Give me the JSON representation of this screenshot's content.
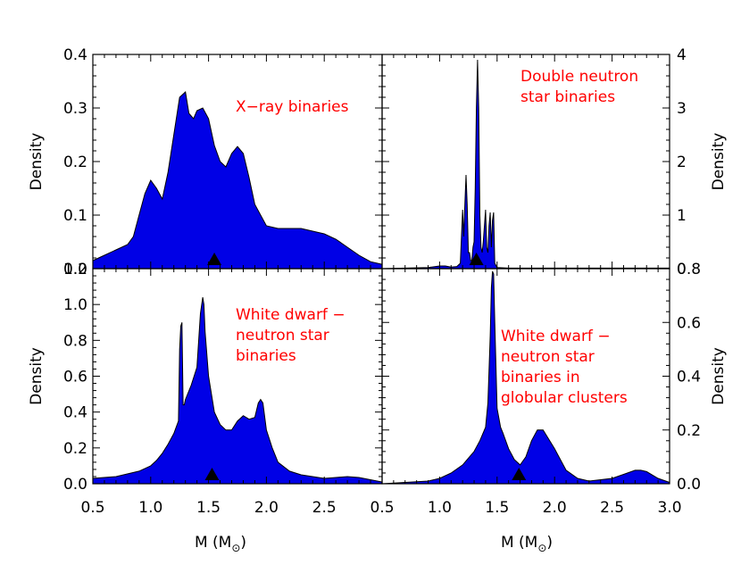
{
  "chart_data": [
    {
      "type": "area",
      "label_lines": [
        "X−ray binaries"
      ],
      "ylabel": "Density",
      "ylabel_side": "left",
      "xlim": [
        0.5,
        3.0
      ],
      "ylim": [
        0,
        0.4
      ],
      "yticks": [
        "0.0",
        "0.1",
        "0.2",
        "0.3",
        "0.4"
      ],
      "marker_x": 1.55,
      "fill_color": "#0000e6",
      "x": [
        0.5,
        0.6,
        0.7,
        0.8,
        0.85,
        0.9,
        0.95,
        1.0,
        1.05,
        1.1,
        1.15,
        1.2,
        1.25,
        1.3,
        1.33,
        1.37,
        1.4,
        1.45,
        1.5,
        1.55,
        1.6,
        1.65,
        1.7,
        1.75,
        1.8,
        1.85,
        1.9,
        2.0,
        2.1,
        2.2,
        2.3,
        2.4,
        2.5,
        2.6,
        2.7,
        2.8,
        2.9,
        3.0
      ],
      "y": [
        0.015,
        0.025,
        0.035,
        0.045,
        0.06,
        0.1,
        0.14,
        0.165,
        0.15,
        0.13,
        0.18,
        0.25,
        0.32,
        0.33,
        0.29,
        0.28,
        0.295,
        0.3,
        0.28,
        0.23,
        0.2,
        0.19,
        0.215,
        0.228,
        0.215,
        0.17,
        0.12,
        0.08,
        0.075,
        0.075,
        0.075,
        0.07,
        0.065,
        0.055,
        0.04,
        0.025,
        0.013,
        0.008
      ]
    },
    {
      "type": "area",
      "label_lines": [
        "Double neutron",
        "star binaries"
      ],
      "ylabel": "Density",
      "ylabel_side": "right",
      "xlim": [
        0.5,
        3.0
      ],
      "ylim": [
        0,
        4
      ],
      "yticks": [
        "0",
        "1",
        "2",
        "3",
        "4"
      ],
      "marker_x": 1.32,
      "fill_color": "#0000e6",
      "x": [
        0.5,
        0.9,
        1.0,
        1.05,
        1.1,
        1.15,
        1.18,
        1.19,
        1.2,
        1.21,
        1.22,
        1.23,
        1.24,
        1.25,
        1.26,
        1.27,
        1.28,
        1.29,
        1.3,
        1.31,
        1.32,
        1.33,
        1.34,
        1.35,
        1.36,
        1.37,
        1.38,
        1.39,
        1.4,
        1.41,
        1.42,
        1.43,
        1.44,
        1.45,
        1.46,
        1.47,
        1.48,
        1.5,
        1.6,
        2.0,
        3.0
      ],
      "y": [
        0.0,
        0.02,
        0.05,
        0.05,
        0.03,
        0.04,
        0.1,
        0.6,
        1.1,
        0.6,
        1.2,
        1.75,
        1.2,
        0.3,
        0.3,
        0.15,
        0.15,
        0.4,
        0.5,
        1.5,
        3.0,
        3.9,
        3.0,
        1.0,
        0.4,
        0.3,
        0.5,
        0.8,
        1.1,
        0.4,
        0.3,
        0.8,
        1.05,
        0.4,
        0.9,
        1.05,
        0.1,
        0.02,
        0.01,
        0.01,
        0.01
      ]
    },
    {
      "type": "area",
      "label_lines": [
        "White dwarf −",
        "neutron star",
        "binaries"
      ],
      "ylabel": "Density",
      "ylabel_side": "left",
      "xlim": [
        0.5,
        3.0
      ],
      "ylim": [
        0,
        1.2
      ],
      "yticks": [
        "0.0",
        "0.2",
        "0.4",
        "0.6",
        "0.8",
        "1.0",
        "1.2"
      ],
      "marker_x": 1.53,
      "fill_color": "#0000e6",
      "x": [
        0.5,
        0.7,
        0.9,
        1.0,
        1.05,
        1.1,
        1.15,
        1.2,
        1.24,
        1.25,
        1.26,
        1.27,
        1.28,
        1.29,
        1.3,
        1.35,
        1.4,
        1.43,
        1.45,
        1.46,
        1.47,
        1.5,
        1.55,
        1.6,
        1.65,
        1.7,
        1.75,
        1.8,
        1.85,
        1.9,
        1.93,
        1.95,
        1.97,
        2.0,
        2.05,
        2.1,
        2.2,
        2.3,
        2.5,
        2.6,
        2.7,
        2.8,
        3.0
      ],
      "y": [
        0.03,
        0.04,
        0.07,
        0.1,
        0.13,
        0.17,
        0.22,
        0.28,
        0.35,
        0.75,
        0.88,
        0.9,
        0.44,
        0.44,
        0.47,
        0.55,
        0.65,
        0.95,
        1.04,
        1.0,
        0.85,
        0.6,
        0.4,
        0.33,
        0.3,
        0.3,
        0.35,
        0.38,
        0.36,
        0.37,
        0.45,
        0.47,
        0.45,
        0.3,
        0.2,
        0.12,
        0.07,
        0.05,
        0.03,
        0.035,
        0.04,
        0.035,
        0.01
      ]
    },
    {
      "type": "area",
      "label_lines": [
        "White dwarf −",
        "neutron star",
        "binaries in",
        "globular clusters"
      ],
      "ylabel": "Density",
      "ylabel_side": "right",
      "xlim": [
        0.5,
        3.0
      ],
      "ylim": [
        0,
        0.8
      ],
      "yticks": [
        "0.0",
        "0.2",
        "0.4",
        "0.6",
        "0.8"
      ],
      "marker_x": 1.69,
      "fill_color": "#0000e6",
      "x": [
        0.5,
        0.7,
        0.9,
        1.0,
        1.1,
        1.2,
        1.3,
        1.35,
        1.4,
        1.42,
        1.44,
        1.45,
        1.46,
        1.47,
        1.48,
        1.5,
        1.53,
        1.55,
        1.6,
        1.65,
        1.7,
        1.75,
        1.8,
        1.85,
        1.9,
        2.0,
        2.1,
        2.2,
        2.3,
        2.5,
        2.6,
        2.7,
        2.75,
        2.8,
        2.9,
        3.0
      ],
      "y": [
        0.0,
        0.005,
        0.01,
        0.02,
        0.04,
        0.07,
        0.12,
        0.16,
        0.21,
        0.3,
        0.55,
        0.73,
        0.79,
        0.78,
        0.6,
        0.28,
        0.21,
        0.19,
        0.13,
        0.09,
        0.07,
        0.1,
        0.16,
        0.2,
        0.2,
        0.13,
        0.05,
        0.02,
        0.01,
        0.02,
        0.035,
        0.05,
        0.05,
        0.045,
        0.02,
        0.005
      ]
    }
  ],
  "xticks_left": [
    "0.5",
    "1.0",
    "1.5",
    "2.0",
    "2.5"
  ],
  "xticks_right": [
    "0.5",
    "1.0",
    "1.5",
    "2.0",
    "2.5",
    "3.0"
  ],
  "xlabel": "M (M",
  "xlabel_close": ")"
}
